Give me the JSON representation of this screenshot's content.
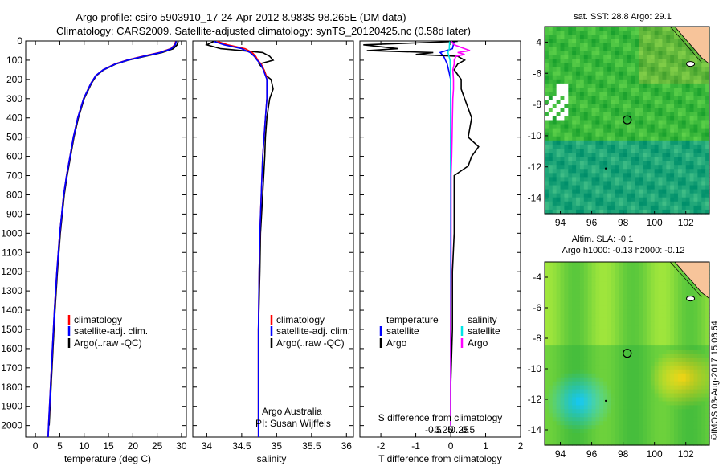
{
  "header": {
    "title_line1": "Argo profile: csiro 5903910_17 24-Apr-2012 8.983S 98.265E (DM data)",
    "title_line2": "Climatology: CARS2009. Satellite-adjusted climatology: synTS_20120425.nc (0.58d later)"
  },
  "colors": {
    "climatology": "#ff0000",
    "satellite": "#0000ff",
    "argo": "#000000",
    "cyan": "#00e5e5",
    "magenta": "#ff00ff",
    "land": "#f7c49a"
  },
  "chart_data": [
    {
      "id": "temperature",
      "type": "line",
      "xlabel": "temperature (deg C)",
      "xlim": [
        -2,
        31
      ],
      "xticks": [
        "0",
        "5",
        "10",
        "15",
        "20",
        "25",
        "30"
      ],
      "xtick_values": [
        0,
        5,
        10,
        15,
        20,
        25,
        30
      ],
      "ylim": [
        0,
        2060
      ],
      "yticks": [
        "0",
        "100",
        "200",
        "300",
        "400",
        "500",
        "600",
        "700",
        "800",
        "900",
        "1000",
        "1100",
        "1200",
        "1300",
        "1400",
        "1500",
        "1600",
        "1700",
        "1800",
        "1900",
        "2000"
      ],
      "ytick_values": [
        0,
        100,
        200,
        300,
        400,
        500,
        600,
        700,
        800,
        900,
        1000,
        1100,
        1200,
        1300,
        1400,
        1500,
        1600,
        1700,
        1800,
        1900,
        2000
      ],
      "legend": [
        "climatology",
        "satellite-adj. clim.",
        "Argo(..raw -QC)"
      ],
      "series": [
        {
          "name": "Argo(..raw -QC)",
          "color": "#000000",
          "depth": [
            2,
            20,
            40,
            60,
            80,
            100,
            120,
            150,
            180,
            220,
            300,
            400,
            500,
            600,
            700,
            800,
            1000,
            1200,
            1400,
            1600,
            1800,
            2000
          ],
          "values": [
            29.3,
            29.1,
            28.3,
            26,
            22.5,
            19,
            16.5,
            14,
            12.5,
            11.5,
            10,
            8.8,
            7.9,
            7.2,
            6.5,
            5.9,
            5.1,
            4.5,
            4,
            3.6,
            3.2,
            2.8
          ]
        },
        {
          "name": "climatology",
          "color": "#ff0000",
          "depth": [
            2,
            20,
            40,
            60,
            80,
            100,
            120,
            150,
            180,
            220,
            300,
            400,
            500,
            600,
            700,
            800,
            1000,
            1200,
            1400,
            1600,
            1800,
            2000,
            2060
          ],
          "values": [
            28.8,
            28.6,
            27.8,
            25.5,
            22,
            18.8,
            16.3,
            13.9,
            12.4,
            11.4,
            9.9,
            8.7,
            7.8,
            7.1,
            6.4,
            5.8,
            5.0,
            4.4,
            3.9,
            3.5,
            3.1,
            2.7,
            2.6
          ]
        },
        {
          "name": "satellite-adj. clim.",
          "color": "#0000ff",
          "depth": [
            2,
            20,
            40,
            60,
            80,
            100,
            120,
            150,
            180,
            220,
            300,
            400,
            500,
            600,
            700,
            800,
            1000,
            1200,
            1400,
            1600,
            1800,
            2000,
            2060
          ],
          "values": [
            28.9,
            28.7,
            27.9,
            25.7,
            22.2,
            18.9,
            16.4,
            13.9,
            12.4,
            11.4,
            9.9,
            8.7,
            7.8,
            7.1,
            6.4,
            5.8,
            5.0,
            4.4,
            3.9,
            3.5,
            3.1,
            2.7,
            2.6
          ]
        }
      ]
    },
    {
      "id": "salinity",
      "type": "line",
      "xlabel": "salinity",
      "xlim": [
        33.8,
        36.1
      ],
      "xticks": [
        "34",
        "34.5",
        "35",
        "35.5",
        "36"
      ],
      "xtick_values": [
        34,
        34.5,
        35,
        35.5,
        36
      ],
      "ylim": [
        0,
        2060
      ],
      "legend": [
        "climatology",
        "satellite-adj. clim.",
        "Argo(..raw -QC)"
      ],
      "annotation": [
        "Argo Australia",
        "PI: Susan Wijffels"
      ],
      "series": [
        {
          "name": "Argo(..raw -QC)",
          "color": "#000000",
          "depth": [
            2,
            20,
            40,
            60,
            80,
            100,
            120,
            150,
            180,
            200,
            250,
            300,
            350,
            400,
            500,
            600,
            800,
            1000,
            1200,
            1500,
            1800,
            2000
          ],
          "values": [
            34.1,
            34.0,
            34.2,
            34.8,
            34.9,
            34.95,
            34.75,
            34.82,
            34.85,
            34.92,
            34.95,
            34.9,
            34.88,
            34.86,
            34.84,
            34.83,
            34.8,
            34.77,
            34.76,
            34.74,
            34.74,
            34.74
          ]
        },
        {
          "name": "climatology",
          "color": "#ff0000",
          "depth": [
            2,
            20,
            40,
            60,
            80,
            100,
            120,
            150,
            180,
            200,
            250,
            300,
            400,
            500,
            600,
            800,
            1000,
            1200,
            1500,
            1800,
            2000,
            2060
          ],
          "values": [
            34.15,
            34.3,
            34.55,
            34.65,
            34.7,
            34.73,
            34.78,
            34.82,
            34.85,
            34.86,
            34.86,
            34.86,
            34.84,
            34.82,
            34.8,
            34.78,
            34.76,
            34.75,
            34.74,
            34.74,
            34.74,
            34.74
          ]
        },
        {
          "name": "satellite-adj. clim.",
          "color": "#0000ff",
          "depth": [
            2,
            20,
            40,
            60,
            80,
            100,
            120,
            150,
            180,
            200,
            250,
            300,
            400,
            500,
            600,
            800,
            1000,
            1200,
            1500,
            1800,
            2000,
            2060
          ],
          "values": [
            34.1,
            34.25,
            34.5,
            34.62,
            34.68,
            34.72,
            34.77,
            34.81,
            34.84,
            34.86,
            34.86,
            34.86,
            34.84,
            34.82,
            34.8,
            34.78,
            34.76,
            34.75,
            34.74,
            34.74,
            34.74,
            34.74
          ]
        }
      ]
    },
    {
      "id": "differences",
      "type": "line",
      "xlabel_top": "S difference from climatology",
      "xlabel": "T difference from climatology",
      "xlim": [
        -2.6,
        2.0
      ],
      "xticks_top": [
        "-0.5",
        "-0.25",
        "0",
        "0.25",
        "0.5"
      ],
      "xticks_top_values": [
        -0.5,
        -0.25,
        0,
        0.25,
        0.5
      ],
      "xticks": [
        "-2",
        "-1",
        "0",
        "1",
        "2"
      ],
      "xtick_values": [
        -2,
        -1,
        0,
        1,
        2
      ],
      "ylim": [
        0,
        2060
      ],
      "legend_titles": [
        "temperature",
        "salinity"
      ],
      "legend": [
        "satellite",
        "Argo",
        "satellite",
        "Argo"
      ],
      "series": [
        {
          "name": "temperature satellite",
          "color": "#0000ff",
          "depth": [
            2,
            40,
            60,
            80,
            120,
            160,
            200,
            300,
            500,
            800,
            1200,
            1600,
            2000
          ],
          "values": [
            0.1,
            0.05,
            -0.3,
            -0.2,
            -0.1,
            -0.05,
            0.0,
            0.0,
            0.0,
            0.0,
            0.0,
            0.0,
            0.0
          ]
        },
        {
          "name": "temperature Argo",
          "color": "#000000",
          "depth": [
            2,
            20,
            40,
            50,
            60,
            70,
            80,
            100,
            120,
            150,
            200,
            250,
            300,
            400,
            500,
            550,
            600,
            650,
            700,
            800,
            1000,
            1200,
            1500,
            1800,
            2000
          ],
          "values": [
            0.2,
            -2.5,
            -1.5,
            -2.4,
            -0.5,
            -1.0,
            0.2,
            0.4,
            0.2,
            0.1,
            0.3,
            0.3,
            0.4,
            0.6,
            0.5,
            0.8,
            0.6,
            0.5,
            0.1,
            0.1,
            0.1,
            0.05,
            0.05,
            0.0,
            0.0
          ]
        },
        {
          "name": "salinity satellite",
          "color": "#00e5e5",
          "depth": [
            2,
            40,
            60,
            80,
            100,
            150,
            200,
            300,
            500,
            800,
            1200,
            1600,
            2000
          ],
          "values": [
            -0.03,
            -0.04,
            -0.08,
            -0.05,
            -0.02,
            -0.01,
            0.0,
            0.0,
            0.0,
            0.0,
            0.0,
            0.0,
            0.0
          ]
        },
        {
          "name": "salinity Argo",
          "color": "#ff00ff",
          "depth": [
            2,
            20,
            40,
            50,
            60,
            70,
            80,
            100,
            120,
            150,
            200,
            250,
            300,
            400,
            500,
            600,
            700,
            800,
            1000,
            1200,
            1500,
            1800,
            2000
          ],
          "values": [
            0.02,
            0.1,
            0.4,
            0.55,
            0.2,
            0.4,
            0.15,
            0.1,
            0.1,
            0.06,
            0.08,
            0.08,
            0.06,
            0.05,
            0.04,
            0.03,
            0.01,
            0.01,
            0.01,
            0.01,
            0.0,
            0.0,
            0.0
          ]
        }
      ]
    },
    {
      "id": "sst_map",
      "type": "heatmap",
      "title": "sat. SST: 28.8 Argo: 29.1",
      "xlim": [
        93,
        103.5
      ],
      "xticks": [
        "94",
        "96",
        "98",
        "100",
        "102"
      ],
      "xtick_values": [
        94,
        96,
        98,
        100,
        102
      ],
      "ylim": [
        -15,
        -3
      ],
      "yticks": [
        "-4",
        "-6",
        "-8",
        "-10",
        "-12",
        "-14"
      ],
      "ytick_values": [
        -4,
        -6,
        -8,
        -10,
        -12,
        -14
      ],
      "marker": {
        "lon": 98.265,
        "lat": -8.983
      }
    },
    {
      "id": "sla_map",
      "type": "heatmap",
      "title_line1": "Altim. SLA: -0.1",
      "title_line2": "Argo h1000: -0.13 h2000: -0.12",
      "xlim": [
        93,
        103.5
      ],
      "xticks": [
        "94",
        "96",
        "98",
        "100",
        "102"
      ],
      "xtick_values": [
        94,
        96,
        98,
        100,
        102
      ],
      "ylim": [
        -15,
        -3
      ],
      "yticks": [
        "-4",
        "-6",
        "-8",
        "-10",
        "-12",
        "-14"
      ],
      "ytick_values": [
        -4,
        -6,
        -8,
        -10,
        -12,
        -14
      ],
      "marker": {
        "lon": 98.265,
        "lat": -8.983
      }
    }
  ],
  "footer": {
    "stamp": "©IMOS 03-Aug-2017 15:06:54"
  }
}
